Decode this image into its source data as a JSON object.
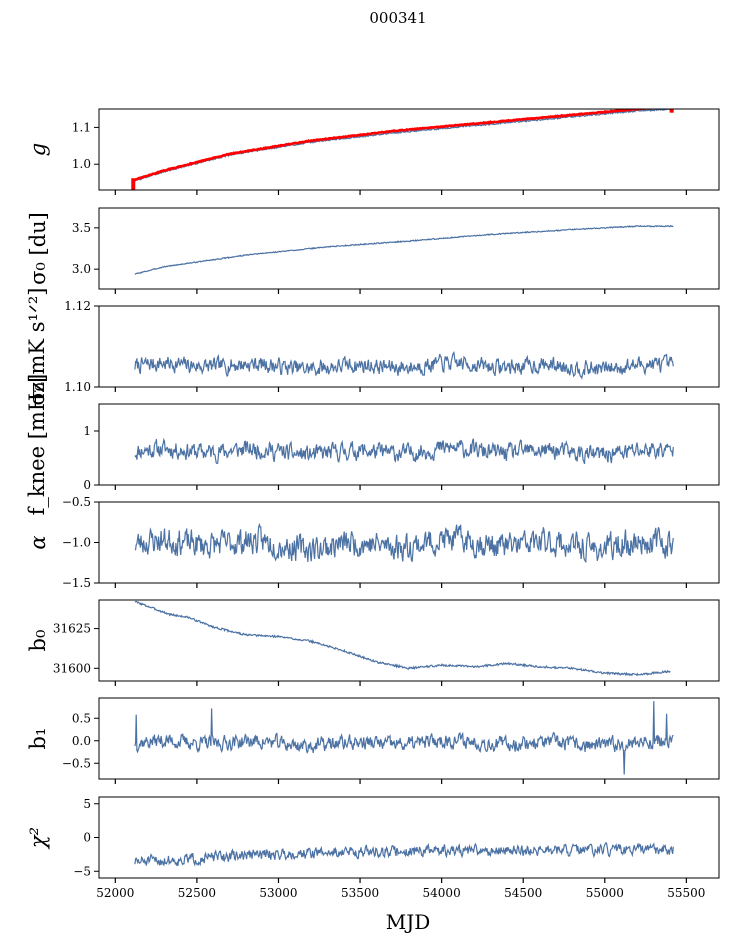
{
  "figure": {
    "title": "000341",
    "xlabel": "MJD",
    "series_color": "#4c72a4",
    "highlight_color": "#ff0000"
  },
  "chart_data": [
    {
      "type": "line",
      "ylabel": "g",
      "ylabel_style": "italic",
      "xlim": [
        51900,
        55700
      ],
      "ylim": [
        0.93,
        1.15
      ],
      "yticks": [
        1.0,
        1.1
      ],
      "ytick_labels": [
        "1.0",
        "1.1"
      ],
      "series": [
        {
          "name": "gain",
          "color": "#4c72a4",
          "shape": "trend",
          "x": [
            52120,
            52300,
            52700,
            53200,
            53700,
            54200,
            54700,
            55200,
            55420
          ],
          "values": [
            0.955,
            0.98,
            1.025,
            1.06,
            1.085,
            1.105,
            1.125,
            1.145,
            1.15
          ],
          "noise": 0.002
        },
        {
          "name": "gain model",
          "color": "#ff0000",
          "shape": "trend",
          "x": [
            52120,
            52300,
            52700,
            53200,
            53700,
            54200,
            54700,
            55200,
            55420
          ],
          "values": [
            0.958,
            0.983,
            1.028,
            1.064,
            1.09,
            1.11,
            1.13,
            1.15,
            1.155
          ],
          "noise": 0.001
        }
      ],
      "markers": [
        {
          "x": 52110,
          "y0": 0.93,
          "y1": 0.962
        },
        {
          "x": 55410,
          "y0": 1.14,
          "y1": 1.155
        }
      ]
    },
    {
      "type": "line",
      "ylabel": "σ₀ [du]",
      "xlim": [
        51900,
        55700
      ],
      "ylim": [
        2.76,
        3.74
      ],
      "yticks": [
        3.0,
        3.5
      ],
      "ytick_labels": [
        "3.0",
        "3.5"
      ],
      "series": [
        {
          "name": "sigma0 du",
          "color": "#4c72a4",
          "shape": "trend",
          "x": [
            52120,
            52300,
            52800,
            53300,
            53800,
            54300,
            54800,
            55200,
            55420
          ],
          "values": [
            2.94,
            3.03,
            3.17,
            3.27,
            3.34,
            3.42,
            3.48,
            3.52,
            3.52
          ],
          "noise": 0.006
        }
      ]
    },
    {
      "type": "line",
      "ylabel": "σ₀[mK s¹ᐟ²]",
      "xlim": [
        51900,
        55700
      ],
      "ylim": [
        1.1,
        1.12
      ],
      "yticks": [
        1.1,
        1.12
      ],
      "ytick_labels": [
        "1.10",
        "1.12"
      ],
      "series": [
        {
          "name": "sigma0 mK",
          "color": "#4c72a4",
          "shape": "noise",
          "x": [
            52120,
            55420
          ],
          "mean": 1.1052,
          "amp": 0.0012,
          "seed": 7
        }
      ]
    },
    {
      "type": "line",
      "ylabel": "f_knee [mHz]",
      "xlim": [
        51900,
        55700
      ],
      "ylim": [
        0,
        1.5
      ],
      "yticks": [
        0,
        1
      ],
      "ytick_labels": [
        "0",
        "1"
      ],
      "series": [
        {
          "name": "fknee",
          "color": "#4c72a4",
          "shape": "noise",
          "x": [
            52120,
            55420
          ],
          "mean": 0.62,
          "amp": 0.1,
          "seed": 11
        }
      ]
    },
    {
      "type": "line",
      "ylabel": "α",
      "ylabel_style": "italic",
      "xlim": [
        51900,
        55700
      ],
      "ylim": [
        -1.5,
        -0.5
      ],
      "yticks": [
        -1.5,
        -1.0,
        -0.5
      ],
      "ytick_labels": [
        "−1.5",
        "−1.0",
        "−0.5"
      ],
      "series": [
        {
          "name": "alpha",
          "color": "#4c72a4",
          "shape": "noise",
          "x": [
            52120,
            55420
          ],
          "mean": -1.02,
          "amp": 0.1,
          "seed": 23
        }
      ]
    },
    {
      "type": "line",
      "ylabel": "b₀",
      "xlim": [
        51900,
        55700
      ],
      "ylim": [
        31592,
        31643
      ],
      "yticks": [
        31600,
        31625
      ],
      "ytick_labels": [
        "31600",
        "31625"
      ],
      "series": [
        {
          "name": "b0",
          "color": "#4c72a4",
          "shape": "trend",
          "x": [
            52120,
            52200,
            52330,
            52450,
            52600,
            52800,
            53000,
            53200,
            53400,
            53600,
            53800,
            54000,
            54200,
            54400,
            54600,
            54800,
            55000,
            55200,
            55400
          ],
          "values": [
            31642,
            31639,
            31634,
            31632,
            31626,
            31621,
            31620,
            31617,
            31611,
            31604,
            31600,
            31602,
            31601,
            31603,
            31601,
            31600,
            31597,
            31596,
            31598
          ],
          "noise": 0.6
        }
      ]
    },
    {
      "type": "line",
      "ylabel": "b₁",
      "xlim": [
        51900,
        55700
      ],
      "ylim": [
        -0.85,
        0.95
      ],
      "yticks": [
        -0.5,
        0.0,
        0.5
      ],
      "ytick_labels": [
        "−0.5",
        "0.0",
        "0.5"
      ],
      "series": [
        {
          "name": "b1",
          "color": "#4c72a4",
          "shape": "noise",
          "x": [
            52120,
            55420
          ],
          "mean": -0.05,
          "amp": 0.1,
          "seed": 37,
          "spikes": [
            [
              52130,
              0.58
            ],
            [
              52590,
              0.72
            ],
            [
              55120,
              -0.75
            ],
            [
              55300,
              0.88
            ],
            [
              55380,
              0.6
            ]
          ]
        }
      ]
    },
    {
      "type": "line",
      "ylabel": "χ²",
      "ylabel_style": "italic",
      "xlim": [
        51900,
        55700
      ],
      "ylim": [
        -6,
        6
      ],
      "yticks": [
        -5,
        0,
        5
      ],
      "ytick_labels": [
        "−5",
        "0",
        "5"
      ],
      "series": [
        {
          "name": "chi2",
          "color": "#4c72a4",
          "shape": "trendnoise",
          "x": [
            52120,
            52400,
            52800,
            53300,
            53800,
            54300,
            54800,
            55420
          ],
          "values": [
            -3.6,
            -3.3,
            -2.6,
            -2.2,
            -2.0,
            -1.9,
            -1.9,
            -1.8
          ],
          "amp": 0.6,
          "seed": 51
        }
      ]
    }
  ],
  "xaxis": {
    "ticks": [
      52000,
      52500,
      53000,
      53500,
      54000,
      54500,
      55000,
      55500
    ],
    "tick_labels": [
      "52000",
      "52500",
      "53000",
      "53500",
      "54000",
      "54500",
      "55000",
      "55500"
    ]
  }
}
